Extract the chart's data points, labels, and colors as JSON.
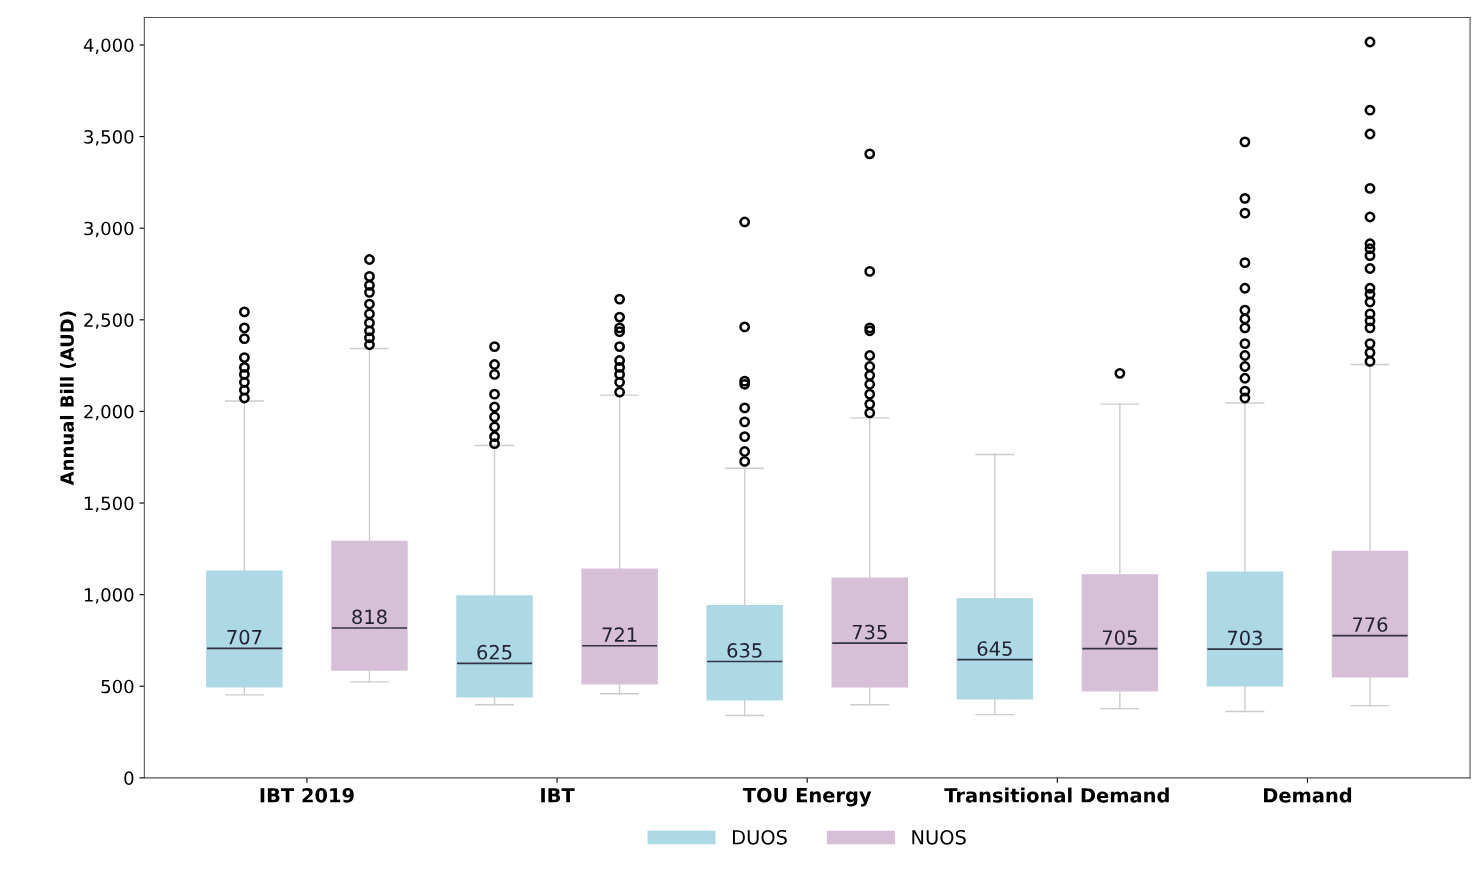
{
  "chart_data": {
    "type": "box",
    "ylabel": "Annual Bill (AUD)",
    "categories": [
      "IBT 2019",
      "IBT",
      "TOU Energy",
      "Transitional Demand",
      "Demand"
    ],
    "ylim": [
      0,
      4150
    ],
    "yticks": [
      {
        "value": 0,
        "label": "0"
      },
      {
        "value": 500,
        "label": "500"
      },
      {
        "value": 1000,
        "label": "1,000"
      },
      {
        "value": 1500,
        "label": "1,500"
      },
      {
        "value": 2000,
        "label": "2,000"
      },
      {
        "value": 2500,
        "label": "2,500"
      },
      {
        "value": 3000,
        "label": "3,000"
      },
      {
        "value": 3500,
        "label": "3,500"
      },
      {
        "value": 4000,
        "label": "4,000"
      }
    ],
    "grid": false,
    "legend": "bottom",
    "marker": "circle",
    "series": [
      {
        "name": "DUOS",
        "color": "#add8e6",
        "value_labels": [
          "707",
          "625",
          "635",
          "645",
          "703"
        ],
        "boxes": [
          {
            "low": 453,
            "q1": 497,
            "median": 707,
            "q3": 1128,
            "high": 2057,
            "outliers": [
              2543,
              2456,
              2397,
              2294,
              2240,
              2202,
              2159,
              2116,
              2073
            ]
          },
          {
            "low": 399,
            "q1": 443,
            "median": 625,
            "q3": 993,
            "high": 1814,
            "outliers": [
              2354,
              2256,
              2202,
              2094,
              2024,
              1970,
              1916,
              1862,
              1824
            ]
          },
          {
            "low": 340,
            "q1": 426,
            "median": 635,
            "q3": 939,
            "high": 1690,
            "outliers": [
              3034,
              2461,
              2165,
              2148,
              2019,
              1943,
              1862,
              1781,
              1727
            ]
          },
          {
            "low": 345,
            "q1": 432,
            "median": 645,
            "q3": 977,
            "high": 1765
          },
          {
            "low": 362,
            "q1": 502,
            "median": 703,
            "q3": 1123,
            "high": 2046,
            "outliers": [
              3471,
              3163,
              3082,
              2812,
              2672,
              2553,
              2505,
              2456,
              2370,
              2305,
              2245,
              2181,
              2111,
              2073
            ]
          }
        ]
      },
      {
        "name": "NUOS",
        "color": "#d8bfd8",
        "value_labels": [
          "818",
          "721",
          "735",
          "705",
          "776"
        ],
        "boxes": [
          {
            "low": 524,
            "q1": 588,
            "median": 818,
            "q3": 1290,
            "high": 2343,
            "outliers": [
              2829,
              2737,
              2688,
              2650,
              2586,
              2532,
              2483,
              2440,
              2402,
              2364
            ]
          },
          {
            "low": 459,
            "q1": 513,
            "median": 721,
            "q3": 1139,
            "high": 2089,
            "outliers": [
              2613,
              2515,
              2456,
              2435,
              2354,
              2278,
              2240,
              2202,
              2159,
              2105
            ]
          },
          {
            "low": 399,
            "q1": 497,
            "median": 735,
            "q3": 1090,
            "high": 1965,
            "outliers": [
              3406,
              2764,
              2456,
              2440,
              2305,
              2245,
              2197,
              2148,
              2094,
              2040,
              1992
            ]
          },
          {
            "low": 378,
            "q1": 475,
            "median": 705,
            "q3": 1107,
            "high": 2040,
            "outliers": [
              2208
            ]
          },
          {
            "low": 394,
            "q1": 551,
            "median": 776,
            "q3": 1236,
            "high": 2256,
            "outliers": [
              4016,
              3644,
              3514,
              3217,
              3061,
              2915,
              2888,
              2850,
              2780,
              2672,
              2640,
              2597,
              2532,
              2494,
              2456,
              2370,
              2321,
              2273
            ]
          }
        ]
      }
    ]
  }
}
